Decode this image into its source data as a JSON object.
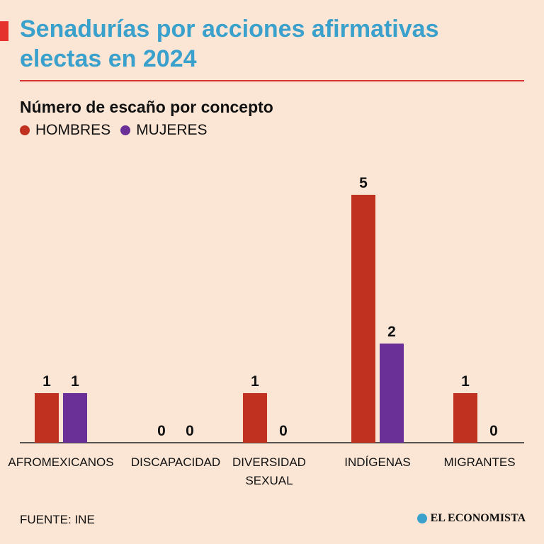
{
  "title_line1": "Senadurías por acciones afirmativas",
  "title_line2": "electas en 2024",
  "colors": {
    "accent": "#e5322d",
    "title": "#3aa0cc",
    "men": "#c0321f",
    "women": "#6a3098"
  },
  "chart_data": {
    "type": "bar",
    "title": "Número de escaño por concepto",
    "categories": [
      [
        "AFROMEXICANOS"
      ],
      [
        "DISCAPACIDAD"
      ],
      [
        "DIVERSIDAD",
        "SEXUAL"
      ],
      [
        "INDÍGENAS"
      ],
      [
        "MIGRANTES"
      ]
    ],
    "series": [
      {
        "name": "HOMBRES",
        "values": [
          1,
          0,
          1,
          5,
          1
        ]
      },
      {
        "name": "MUJERES",
        "values": [
          1,
          0,
          0,
          2,
          0
        ]
      }
    ],
    "ylim": [
      0,
      5
    ],
    "legend": "top-left",
    "grid": false
  },
  "source": "FUENTE: INE",
  "logo": "EL ECONOMISTA"
}
